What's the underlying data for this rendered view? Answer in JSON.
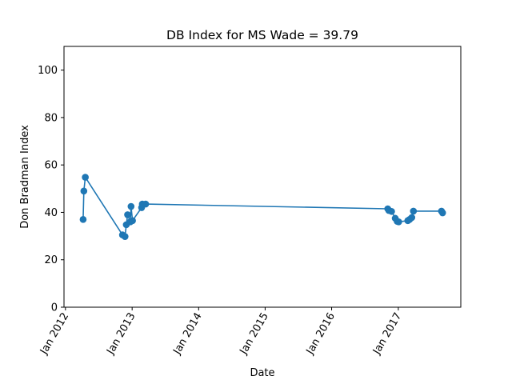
{
  "chart_data": {
    "type": "line",
    "title": "DB Index for MS Wade = 39.79",
    "xlabel": "Date",
    "ylabel": "Don Bradman Index",
    "ylim": [
      0,
      110
    ],
    "xlim": [
      "2011-12-24",
      "2017-12-10"
    ],
    "y_ticks": [
      0,
      20,
      40,
      60,
      80,
      100
    ],
    "x_ticks": [
      {
        "date": "2012-01-01",
        "label": "Jan 2012"
      },
      {
        "date": "2013-01-01",
        "label": "Jan 2013"
      },
      {
        "date": "2014-01-01",
        "label": "Jan 2014"
      },
      {
        "date": "2015-01-01",
        "label": "Jan 2015"
      },
      {
        "date": "2016-01-01",
        "label": "Jan 2016"
      },
      {
        "date": "2017-01-01",
        "label": "Jan 2017"
      }
    ],
    "grid": false,
    "marker": "circle",
    "series": [
      {
        "color": "#1f77b4",
        "x": [
          "2012-04-07",
          "2012-04-11",
          "2012-04-19",
          "2012-11-09",
          "2012-11-23",
          "2012-11-30",
          "2012-12-07",
          "2012-12-22",
          "2012-12-26",
          "2013-01-03",
          "2013-02-22",
          "2013-02-26",
          "2013-03-16",
          "2016-11-04",
          "2016-11-10",
          "2016-11-25",
          "2016-12-15",
          "2016-12-26",
          "2017-01-03",
          "2017-02-22",
          "2017-03-04",
          "2017-03-16",
          "2017-03-25",
          "2017-08-26",
          "2017-09-01"
        ],
        "y": [
          37.0,
          49.0,
          54.8,
          30.5,
          29.8,
          34.8,
          39.0,
          36.0,
          42.5,
          36.5,
          42.0,
          43.5,
          43.5,
          41.5,
          40.8,
          40.4,
          37.5,
          36.2,
          36.0,
          36.5,
          37.0,
          37.8,
          40.5,
          40.5,
          39.8
        ]
      }
    ]
  }
}
